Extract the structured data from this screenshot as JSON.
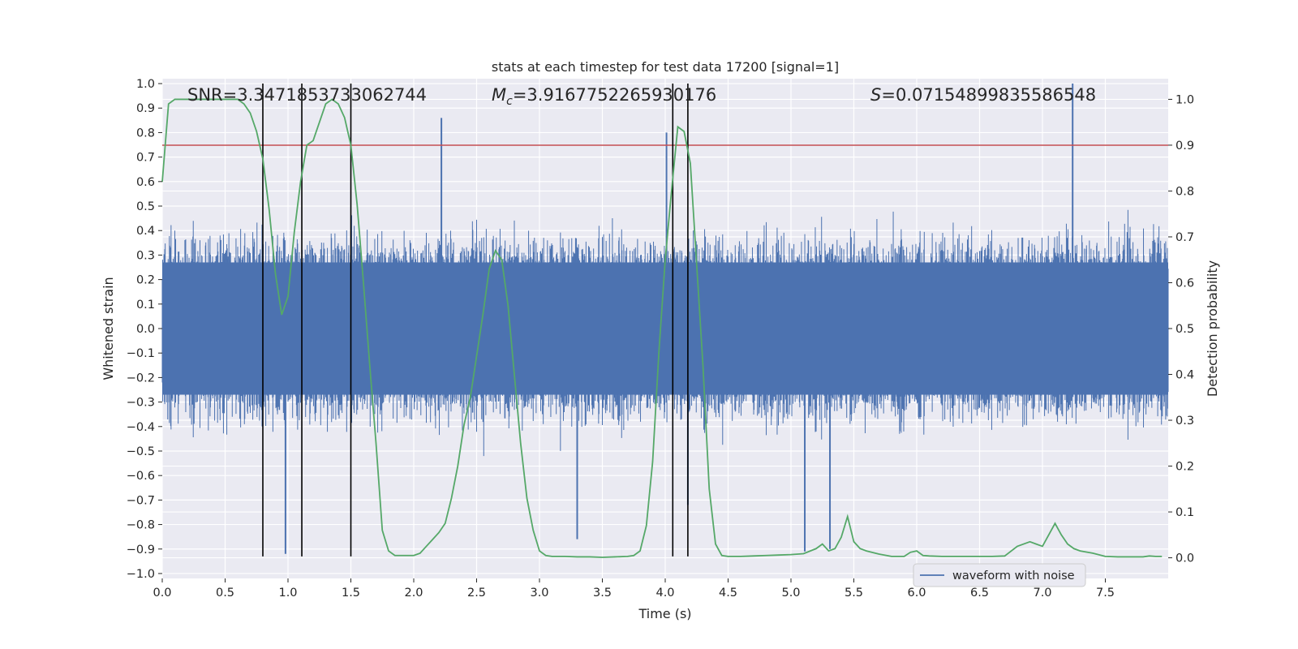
{
  "chart_data": {
    "type": "line",
    "title": "stats at each timestep for test data 17200 [signal=1]",
    "xlabel": "Time (s)",
    "ylabel": "Whitened strain",
    "y2label": "Detection probability",
    "xlim": [
      0.0,
      8.0
    ],
    "ylim": [
      -1.02,
      1.02
    ],
    "y2lim": [
      -0.045,
      1.045
    ],
    "grid": true,
    "background": "#eaeaf2",
    "x_ticks": [
      "0.0",
      "0.5",
      "1.0",
      "1.5",
      "2.0",
      "2.5",
      "3.0",
      "3.5",
      "4.0",
      "4.5",
      "5.0",
      "5.5",
      "6.0",
      "6.5",
      "7.0",
      "7.5"
    ],
    "y_ticks": [
      "1.0",
      "0.9",
      "0.8",
      "0.7",
      "0.6",
      "0.5",
      "0.4",
      "0.3",
      "0.2",
      "0.1",
      "0.0",
      "−0.1",
      "−0.2",
      "−0.3",
      "−0.4",
      "−0.5",
      "−0.6",
      "−0.7",
      "−0.8",
      "−0.9",
      "−1.0"
    ],
    "y2_ticks": [
      "1.0",
      "0.9",
      "0.8",
      "0.7",
      "0.6",
      "0.5",
      "0.4",
      "0.3",
      "0.2",
      "0.1",
      "0.0"
    ],
    "annotations": {
      "snr": "SNR=3.3471853733062744",
      "mc_symbol": "M",
      "mc_sub": "c",
      "mc_value": "=3.9167752265930176",
      "s_symbol": "S",
      "s_value": "=0.07154899835586548"
    },
    "legend": {
      "label": "waveform with noise",
      "placement": "lower-right"
    },
    "threshold": {
      "y2": 0.9,
      "color": "#c44e52"
    },
    "vertical_lines": [
      0.8,
      1.11,
      1.5,
      4.06,
      4.18
    ],
    "series": [
      {
        "name": "waveform with noise",
        "color": "#4c72b0",
        "note": "dense noisy whitened-strain time series sampled densely over 0-8 s",
        "peaks": [
          {
            "x": 2.22,
            "y": 0.86
          },
          {
            "x": 4.01,
            "y": 0.8
          },
          {
            "x": 7.24,
            "y": 1.0
          },
          {
            "x": 0.98,
            "y": -0.92
          },
          {
            "x": 5.11,
            "y": -0.91
          },
          {
            "x": 5.31,
            "y": -0.9
          },
          {
            "x": 4.18,
            "y": -0.72
          },
          {
            "x": 3.3,
            "y": -0.86
          }
        ]
      },
      {
        "name": "detection probability",
        "color": "#55a868",
        "axis": "y2",
        "x": [
          0.0,
          0.05,
          0.1,
          0.2,
          0.3,
          0.4,
          0.5,
          0.6,
          0.65,
          0.7,
          0.75,
          0.8,
          0.85,
          0.9,
          0.95,
          1.0,
          1.05,
          1.1,
          1.15,
          1.2,
          1.25,
          1.3,
          1.35,
          1.4,
          1.45,
          1.5,
          1.55,
          1.6,
          1.65,
          1.7,
          1.75,
          1.8,
          1.85,
          1.9,
          1.95,
          2.0,
          2.05,
          2.1,
          2.15,
          2.2,
          2.25,
          2.3,
          2.35,
          2.4,
          2.45,
          2.5,
          2.55,
          2.6,
          2.65,
          2.7,
          2.75,
          2.8,
          2.85,
          2.9,
          2.95,
          3.0,
          3.05,
          3.1,
          3.15,
          3.2,
          3.3,
          3.4,
          3.5,
          3.6,
          3.7,
          3.75,
          3.8,
          3.85,
          3.9,
          3.95,
          4.0,
          4.05,
          4.1,
          4.15,
          4.2,
          4.25,
          4.3,
          4.35,
          4.4,
          4.45,
          4.5,
          4.6,
          4.7,
          4.8,
          4.9,
          5.0,
          5.1,
          5.2,
          5.25,
          5.3,
          5.35,
          5.4,
          5.45,
          5.5,
          5.55,
          5.6,
          5.7,
          5.8,
          5.9,
          5.95,
          6.0,
          6.05,
          6.1,
          6.2,
          6.3,
          6.4,
          6.5,
          6.6,
          6.7,
          6.8,
          6.9,
          6.95,
          7.0,
          7.05,
          7.1,
          7.15,
          7.2,
          7.25,
          7.3,
          7.4,
          7.5,
          7.6,
          7.7,
          7.8,
          7.85,
          7.9,
          7.95
        ],
        "y": [
          0.82,
          0.99,
          1.0,
          1.0,
          1.0,
          1.0,
          1.0,
          1.0,
          0.99,
          0.97,
          0.93,
          0.87,
          0.76,
          0.62,
          0.53,
          0.57,
          0.71,
          0.82,
          0.9,
          0.91,
          0.95,
          0.99,
          1.0,
          0.99,
          0.96,
          0.9,
          0.77,
          0.6,
          0.42,
          0.25,
          0.06,
          0.015,
          0.005,
          0.005,
          0.005,
          0.005,
          0.01,
          0.025,
          0.04,
          0.055,
          0.075,
          0.13,
          0.2,
          0.29,
          0.35,
          0.44,
          0.53,
          0.63,
          0.67,
          0.65,
          0.55,
          0.4,
          0.25,
          0.13,
          0.06,
          0.015,
          0.005,
          0.003,
          0.003,
          0.003,
          0.002,
          0.002,
          0.001,
          0.002,
          0.003,
          0.005,
          0.015,
          0.07,
          0.21,
          0.45,
          0.65,
          0.8,
          0.94,
          0.93,
          0.86,
          0.64,
          0.42,
          0.15,
          0.03,
          0.005,
          0.003,
          0.003,
          0.004,
          0.005,
          0.006,
          0.007,
          0.009,
          0.02,
          0.03,
          0.015,
          0.02,
          0.045,
          0.09,
          0.035,
          0.02,
          0.015,
          0.008,
          0.003,
          0.003,
          0.012,
          0.015,
          0.005,
          0.004,
          0.003,
          0.003,
          0.003,
          0.003,
          0.003,
          0.004,
          0.025,
          0.035,
          0.03,
          0.025,
          0.05,
          0.075,
          0.05,
          0.03,
          0.02,
          0.015,
          0.01,
          0.003,
          0.002,
          0.002,
          0.002,
          0.004,
          0.003,
          0.003
        ]
      }
    ]
  }
}
